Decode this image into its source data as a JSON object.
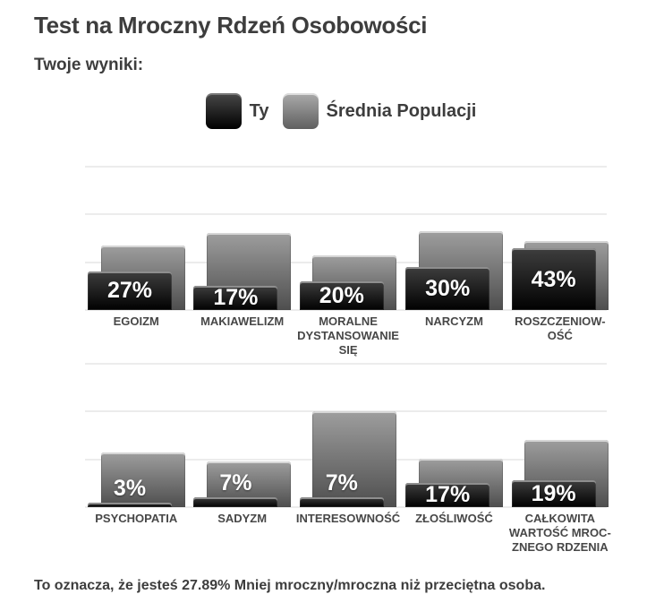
{
  "page": {
    "title": "Test na Mroczny Rdzeń Osobowości",
    "subtitle": "Twoje wyniki:",
    "footer": "To oznacza, że jesteś 27.89% Mniej mroczny/mroczna niż przeciętna osoba.",
    "difference_percent": "27.89%"
  },
  "legend": {
    "you_label": "Ty",
    "avg_label": "Średnia Populacji",
    "position": "top-center"
  },
  "colors": {
    "you_bar_top": "#3e3e3e",
    "you_bar_bottom": "#010101",
    "avg_bar_top": "#9e9e9e",
    "avg_bar_bottom": "#4e4e4e",
    "grid": "#ececec",
    "text": "#3d3d3d",
    "value_label": "#ffffff"
  },
  "chart_data": [
    {
      "type": "bar",
      "title": "",
      "categories": [
        "EGOIZM",
        "MAKIAWELIZM",
        "MORALNE\nDYSTANSOWANIE\nSIĘ",
        "NARCYZM",
        "ROSZCZENIOW-\nOŚĆ"
      ],
      "series": [
        {
          "name": "Ty",
          "values": [
            27,
            17,
            20,
            30,
            43
          ],
          "data_labels": [
            "27%",
            "17%",
            "20%",
            "30%",
            "43%"
          ]
        },
        {
          "name": "Średnia Populacji",
          "values": [
            45,
            54,
            38,
            55,
            48
          ]
        }
      ],
      "ylim": [
        0,
        100
      ],
      "grid": true,
      "gridline_interval_pct": 33.33,
      "xlabel": "",
      "ylabel": ""
    },
    {
      "type": "bar",
      "title": "",
      "categories": [
        "PSYCHOPATIA",
        "SADYZM",
        "INTERESOWNOŚĆ",
        "ZŁOŚLIWOŚĆ",
        "CAŁKOWITA\nWARTOŚĆ MROC-\nZNEGO RDZENIA"
      ],
      "series": [
        {
          "name": "Ty",
          "values": [
            3,
            7,
            7,
            17,
            19
          ],
          "data_labels": [
            "3%",
            "7%",
            "7%",
            "17%",
            "19%"
          ]
        },
        {
          "name": "Średnia Populacji",
          "values": [
            38,
            32,
            67,
            34,
            47
          ]
        }
      ],
      "ylim": [
        0,
        100
      ],
      "grid": true,
      "gridline_interval_pct": 33.33,
      "xlabel": "",
      "ylabel": ""
    }
  ]
}
